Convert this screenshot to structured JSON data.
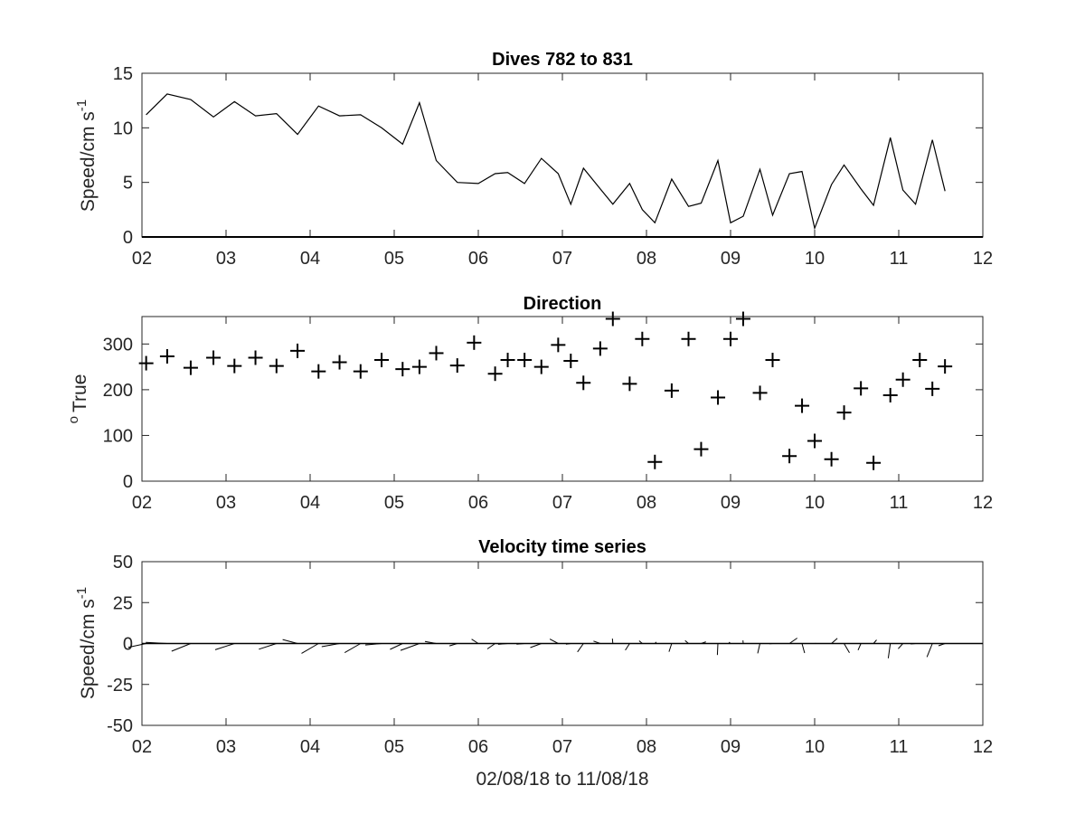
{
  "chart_data": [
    {
      "type": "line",
      "title": "Dives 782 to 831",
      "ylabel_main": "Speed/cm s",
      "ylabel_sup": "-1",
      "xlabel": "",
      "xlim": [
        2,
        12
      ],
      "ylim": [
        0,
        15
      ],
      "xticks": [
        2,
        3,
        4,
        5,
        6,
        7,
        8,
        9,
        10,
        11,
        12
      ],
      "xticklabels": [
        "02",
        "03",
        "04",
        "05",
        "06",
        "07",
        "08",
        "09",
        "10",
        "11",
        "12"
      ],
      "yticks": [
        0,
        5,
        10,
        15
      ],
      "yticklabels": [
        "0",
        "5",
        "10",
        "15"
      ],
      "grid": false,
      "x": [
        2.05,
        2.3,
        2.58,
        2.85,
        3.1,
        3.35,
        3.6,
        3.85,
        4.1,
        4.35,
        4.6,
        4.85,
        5.1,
        5.3,
        5.5,
        5.75,
        6.0,
        6.2,
        6.35,
        6.55,
        6.75,
        6.95,
        7.1,
        7.25,
        7.45,
        7.6,
        7.8,
        7.95,
        8.1,
        8.3,
        8.5,
        8.65,
        8.85,
        9.0,
        9.15,
        9.35,
        9.5,
        9.7,
        9.85,
        10.0,
        10.2,
        10.35,
        10.55,
        10.7,
        10.9,
        11.05,
        11.2,
        11.4,
        11.55
      ],
      "y": [
        11.2,
        13.1,
        12.6,
        11.0,
        12.4,
        11.1,
        11.3,
        9.4,
        12.0,
        11.1,
        11.2,
        10.0,
        8.5,
        12.3,
        7.0,
        5.0,
        4.9,
        5.8,
        5.9,
        4.9,
        7.2,
        5.8,
        3.0,
        6.3,
        4.4,
        3.0,
        4.9,
        2.5,
        1.3,
        5.3,
        2.8,
        3.1,
        7.0,
        1.3,
        1.9,
        6.2,
        2.0,
        5.8,
        6.0,
        0.8,
        4.8,
        6.6,
        4.4,
        2.9,
        9.1,
        4.3,
        3.0,
        8.9,
        4.2
      ]
    },
    {
      "type": "scatter",
      "title": "Direction",
      "ylabel_pre": "o",
      "ylabel_main": "True",
      "xlabel": "",
      "xlim": [
        2,
        12
      ],
      "ylim": [
        0,
        360
      ],
      "xticks": [
        2,
        3,
        4,
        5,
        6,
        7,
        8,
        9,
        10,
        11,
        12
      ],
      "xticklabels": [
        "02",
        "03",
        "04",
        "05",
        "06",
        "07",
        "08",
        "09",
        "10",
        "11",
        "12"
      ],
      "yticks": [
        0,
        100,
        200,
        300
      ],
      "yticklabels": [
        "0",
        "100",
        "200",
        "300"
      ],
      "marker": "+",
      "grid": false,
      "x": [
        2.05,
        2.3,
        2.58,
        2.85,
        3.1,
        3.35,
        3.6,
        3.85,
        4.1,
        4.35,
        4.6,
        4.85,
        5.1,
        5.3,
        5.5,
        5.75,
        5.95,
        6.2,
        6.35,
        6.55,
        6.75,
        6.95,
        7.1,
        7.25,
        7.45,
        7.6,
        7.8,
        7.95,
        8.1,
        8.3,
        8.5,
        8.65,
        8.85,
        9.0,
        9.15,
        9.35,
        9.5,
        9.7,
        9.85,
        10.0,
        10.2,
        10.35,
        10.55,
        10.7,
        10.9,
        11.05,
        11.25,
        11.4,
        11.55
      ],
      "y": [
        258,
        273,
        248,
        270,
        252,
        270,
        252,
        285,
        240,
        260,
        240,
        265,
        245,
        250,
        280,
        253,
        303,
        235,
        265,
        265,
        250,
        298,
        263,
        215,
        290,
        355,
        213,
        311,
        42,
        198,
        311,
        70,
        183,
        311,
        355,
        193,
        265,
        55,
        165,
        88,
        48,
        150,
        203,
        40,
        188,
        222,
        265,
        202,
        251
      ]
    },
    {
      "type": "quiver",
      "title": "Velocity time series",
      "ylabel_main": "Speed/cm s",
      "ylabel_sup": "-1",
      "xlabel": "02/08/18 to 11/08/18",
      "xlim": [
        2,
        12
      ],
      "ylim": [
        -50,
        50
      ],
      "xticks": [
        2,
        3,
        4,
        5,
        6,
        7,
        8,
        9,
        10,
        11,
        12
      ],
      "xticklabels": [
        "02",
        "03",
        "04",
        "05",
        "06",
        "07",
        "08",
        "09",
        "10",
        "11",
        "12"
      ],
      "yticks": [
        -50,
        -25,
        0,
        25,
        50
      ],
      "yticklabels": [
        "-50",
        "-25",
        "0",
        "25",
        "50"
      ],
      "grid": false,
      "vectors_note": "stick plot: direction and speed per dive"
    }
  ]
}
